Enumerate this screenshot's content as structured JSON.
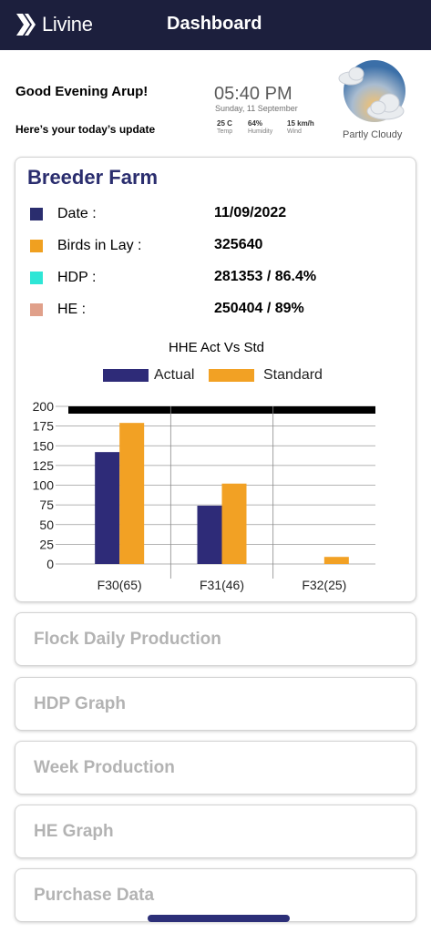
{
  "header": {
    "app_name": "Livine",
    "page_title": "Dashboard"
  },
  "greeting": {
    "title": "Good Evening Arup!",
    "subtitle": "Here’s your today’s update"
  },
  "weather": {
    "time": "05:40 PM",
    "date": "Sunday, 11 September",
    "temp": {
      "value": "25 C",
      "label": "Temp"
    },
    "humidity": {
      "value": "64%",
      "label": "Humidity"
    },
    "wind": {
      "value": "15 km/h",
      "label": "Wind"
    },
    "condition": "Partly Cloudy",
    "icon": "partly-cloudy-icon"
  },
  "breeder": {
    "title": "Breeder Farm",
    "rows": [
      {
        "label": "Date :",
        "value": "11/09/2022",
        "color": "#2a2d6e"
      },
      {
        "label": "Birds in Lay :",
        "value": "325640",
        "color": "#f0a020"
      },
      {
        "label": "HDP :",
        "value": "281353 / 86.4%",
        "color": "#2ee6d6"
      },
      {
        "label": "HE :",
        "value": "250404 / 89%",
        "color": "#e0a08a"
      }
    ]
  },
  "chart_data": {
    "type": "bar",
    "title": "HHE Act Vs Std",
    "categories": [
      "F30(65)",
      "F31(46)",
      "F32(25)"
    ],
    "series": [
      {
        "name": "Actual",
        "values": [
          142,
          74,
          0
        ],
        "color": "#2e2b78"
      },
      {
        "name": "Standard",
        "values": [
          179,
          102,
          9
        ],
        "color": "#f2a124"
      }
    ],
    "yticks": [
      0,
      25,
      50,
      75,
      100,
      125,
      150,
      175,
      200
    ],
    "ylim": [
      0,
      200
    ],
    "legend": "top",
    "grid": true
  },
  "sections": [
    "Flock Daily Production",
    "HDP Graph",
    "Week Production",
    "HE Graph",
    "Purchase Data"
  ]
}
